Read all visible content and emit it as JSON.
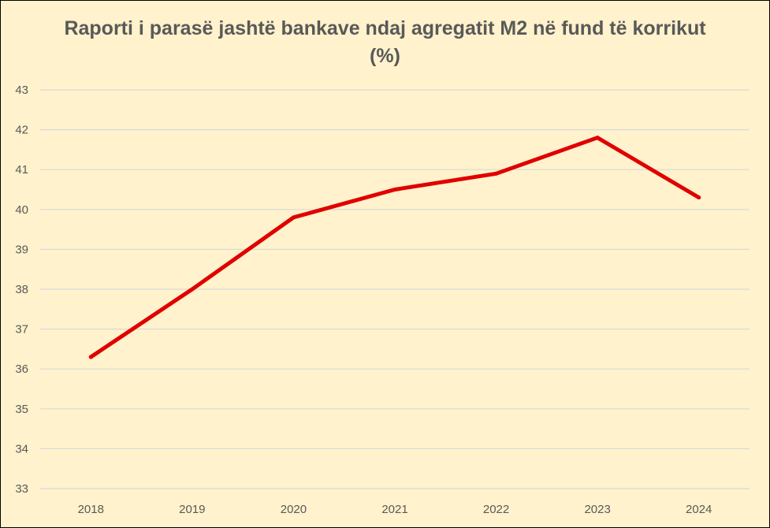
{
  "chart_data": {
    "type": "line",
    "title": "Raporti i parasë jashtë bankave ndaj agregatit M2 në fund të korrikut (%)",
    "xlabel": "",
    "ylabel": "",
    "categories": [
      "2018",
      "2019",
      "2020",
      "2021",
      "2022",
      "2023",
      "2024"
    ],
    "series": [
      {
        "values": [
          36.3,
          38.0,
          39.8,
          40.5,
          40.9,
          41.8,
          40.3
        ],
        "color": "#e00000"
      }
    ],
    "ylim": [
      33,
      43
    ],
    "yticks": [
      33,
      34,
      35,
      36,
      37,
      38,
      39,
      40,
      41,
      42,
      43
    ],
    "grid": true,
    "legend": "none",
    "colors": {
      "background": "#fff2cc",
      "gridline": "#d9d9d9",
      "text": "#595959",
      "border": "#000000"
    }
  }
}
